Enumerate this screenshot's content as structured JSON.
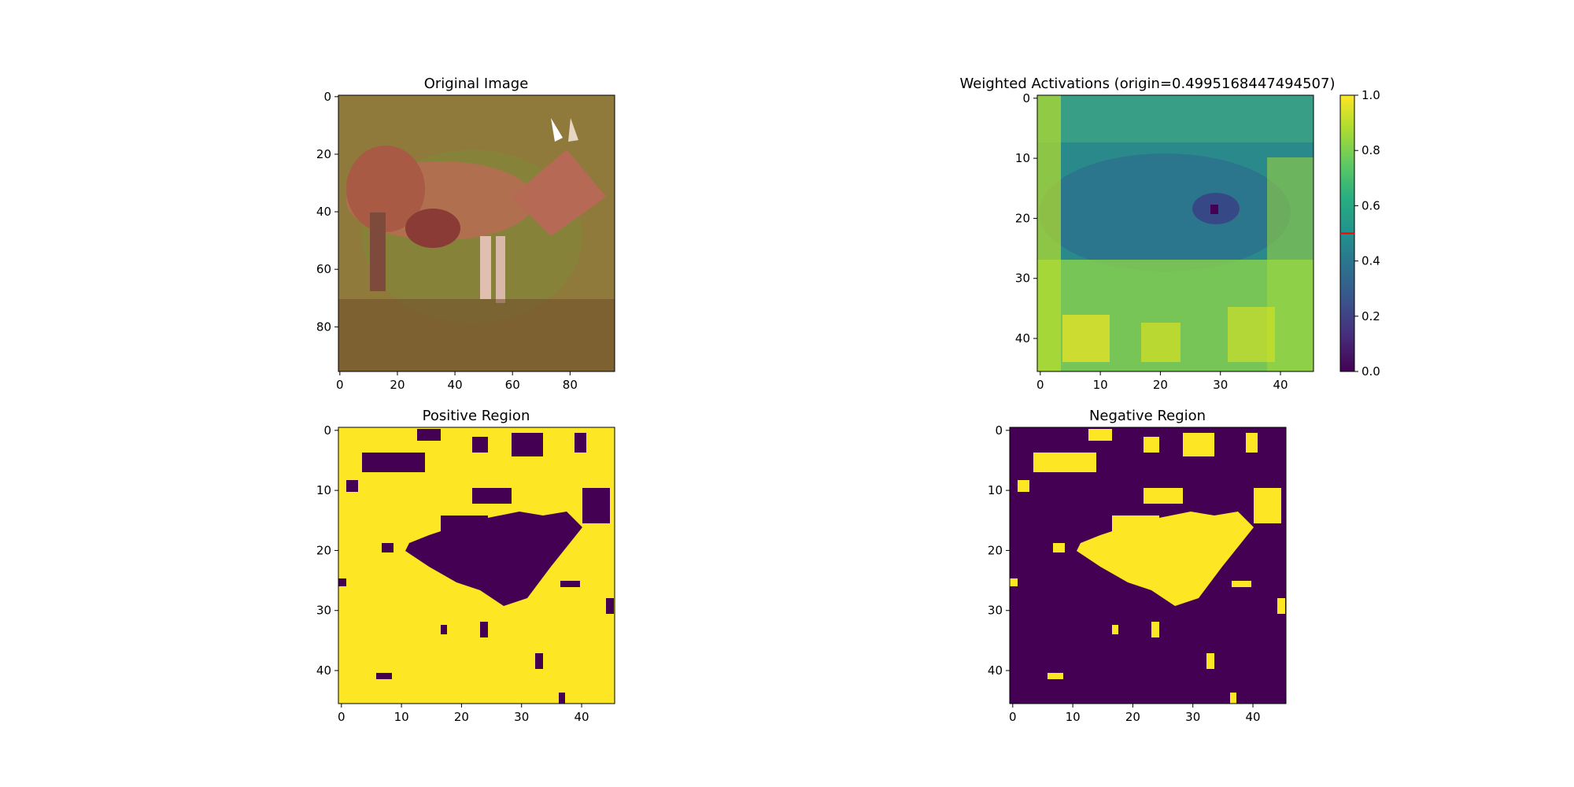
{
  "figure": {
    "panels": [
      {
        "id": "original",
        "title": "Original Image",
        "xticks": [
          "0",
          "20",
          "40",
          "60",
          "80"
        ],
        "yticks": [
          "0",
          "20",
          "40",
          "60",
          "80"
        ]
      },
      {
        "id": "weighted",
        "title": "Weighted Activations (origin=0.4995168447494507)",
        "xticks": [
          "0",
          "10",
          "20",
          "30",
          "40"
        ],
        "yticks": [
          "0",
          "10",
          "20",
          "30",
          "40"
        ]
      },
      {
        "id": "positive",
        "title": "Positive Region",
        "xticks": [
          "0",
          "10",
          "20",
          "30",
          "40"
        ],
        "yticks": [
          "0",
          "10",
          "20",
          "30",
          "40"
        ]
      },
      {
        "id": "negative",
        "title": "Negative Region",
        "xticks": [
          "0",
          "10",
          "20",
          "30",
          "40"
        ],
        "yticks": [
          "0",
          "10",
          "20",
          "30",
          "40"
        ]
      }
    ],
    "colorbar": {
      "ticks": [
        "0.0",
        "0.2",
        "0.4",
        "0.6",
        "0.8",
        "1.0"
      ],
      "marker_value": 0.4995,
      "marker_color": "#ff0000"
    }
  },
  "chart_data": [
    {
      "type": "heatmap",
      "title": "Original Image",
      "image": "photo of a deer standing in tall grass",
      "grid_size": [
        96,
        96
      ],
      "xlim": [
        0,
        96
      ],
      "ylim": [
        96,
        0
      ]
    },
    {
      "type": "heatmap",
      "title": "Weighted Activations (origin=0.4995168447494507)",
      "grid_size": [
        46,
        46
      ],
      "colormap": "viridis",
      "vmin": 0.0,
      "vmax": 1.0,
      "origin": 0.4995168447494507
    },
    {
      "type": "heatmap",
      "title": "Positive Region",
      "grid_size": [
        46,
        46
      ],
      "values": "binary mask: 1 (yellow) background grass, 0 (purple) deer body region"
    },
    {
      "type": "heatmap",
      "title": "Negative Region",
      "grid_size": [
        46,
        46
      ],
      "values": "binary mask: inverse of positive region"
    }
  ],
  "colors": {
    "viridis_low": "#440154",
    "viridis_high": "#fde725"
  }
}
